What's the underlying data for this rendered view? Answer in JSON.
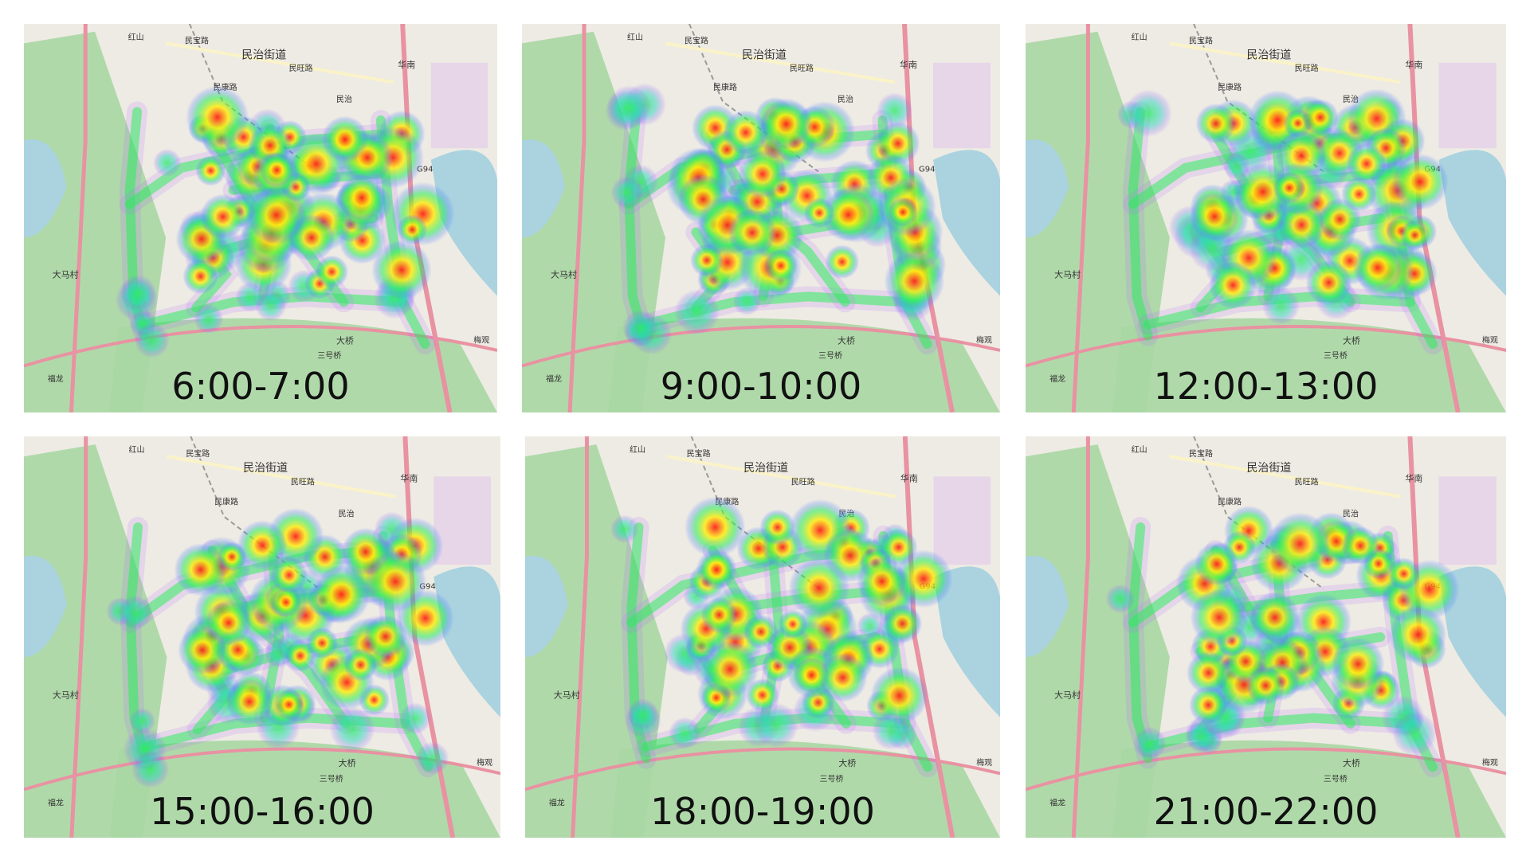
{
  "panels": [
    {
      "time": "6:00-7:00"
    },
    {
      "time": "9:00-10:00"
    },
    {
      "time": "12:00-13:00"
    },
    {
      "time": "15:00-16:00"
    },
    {
      "time": "18:00-19:00"
    },
    {
      "time": "21:00-22:00"
    }
  ],
  "map_labels": {
    "district": "民治街道",
    "village": "大马村",
    "bridge": "大桥",
    "road_minzhi": "民治",
    "road_huanan": "华南",
    "road_minkang": "民康路",
    "road_minbao": "民宝路",
    "road_minwang": "民旺路",
    "hongshan": "红山",
    "meiguan": "梅观",
    "highway": "G94",
    "fulong": "福龙",
    "sanhaoqiao": "三号桥"
  },
  "colors": {
    "map_background": "#eeebe4",
    "park_green": "#a9d7a3",
    "water_blue": "#aad3df",
    "major_road": "#e892a2",
    "heat_low": "#4a7bff",
    "heat_mid": "#22ee55",
    "heat_high": "#ffee00",
    "heat_peak": "#ff1010"
  }
}
